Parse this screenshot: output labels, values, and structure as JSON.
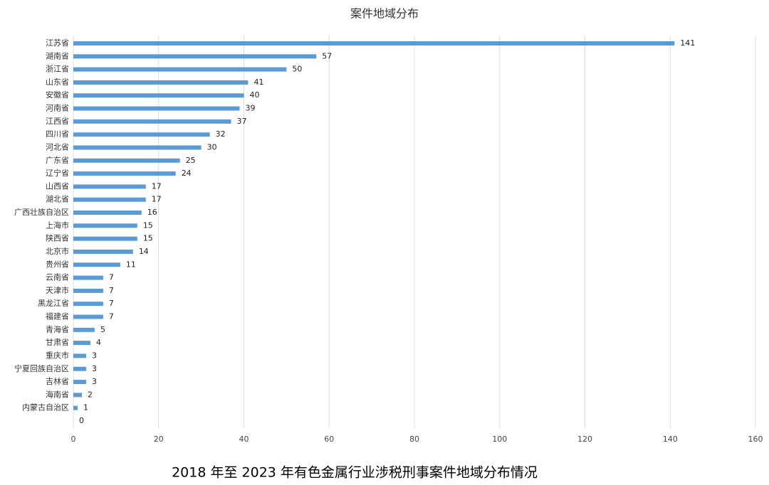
{
  "chart_data": {
    "type": "bar",
    "orientation": "horizontal",
    "title": "案件地域分布",
    "caption": "2018 年至 2023 年有色金属行业涉税刑事案件地域分布情况",
    "categories": [
      "江苏省",
      "湖南省",
      "浙江省",
      "山东省",
      "安徽省",
      "河南省",
      "江西省",
      "四川省",
      "河北省",
      "广东省",
      "辽宁省",
      "山西省",
      "湖北省",
      "广西壮族自治区",
      "上海市",
      "陕西省",
      "北京市",
      "贵州省",
      "云南省",
      "天津市",
      "黑龙江省",
      "福建省",
      "青海省",
      "甘肃省",
      "重庆市",
      "宁夏回族自治区",
      "吉林省",
      "海南省",
      "内蒙古自治区",
      null
    ],
    "values": [
      141,
      57,
      50,
      41,
      40,
      39,
      37,
      32,
      30,
      25,
      24,
      17,
      17,
      16,
      15,
      15,
      14,
      11,
      7,
      7,
      7,
      7,
      5,
      4,
      3,
      3,
      3,
      2,
      1,
      0
    ],
    "color": "#5b9bd5",
    "xlim": [
      0,
      160
    ],
    "xticks": [
      0,
      20,
      40,
      60,
      80,
      100,
      120,
      140,
      160
    ],
    "grid": true
  }
}
